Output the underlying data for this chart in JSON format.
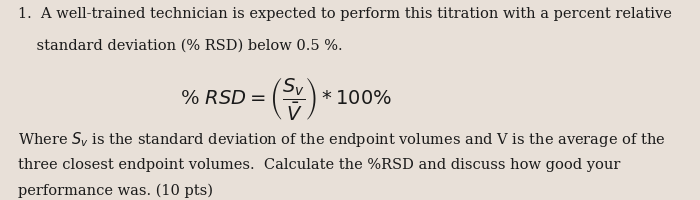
{
  "background_color": "#e8e0d8",
  "text_color": "#1a1a1a",
  "line1": "1.  A well-trained technician is expected to perform this titration with a percent relative",
  "line2": "    standard deviation (% RSD) below 0.5 %.",
  "equation": "% RSD = \\left(\\dfrac{S_v}{\\bar{V}}\\right) * 100%",
  "line3": "Where $S_v$ is the standard deviation of the endpoint volumes and V is the average of the",
  "line4": "three closest endpoint volumes.  Calculate the %RSD and discuss how good your",
  "line5": "performance was. (10 pts)",
  "fontsize_main": 10.5,
  "fontsize_eq": 14
}
